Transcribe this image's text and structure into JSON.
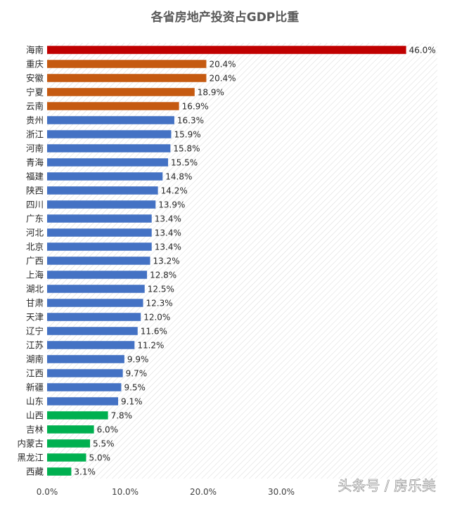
{
  "chart_data": {
    "type": "bar",
    "orientation": "horizontal",
    "title": "各省房地产投资占GDP比重",
    "xlabel": "",
    "ylabel": "",
    "xlim": [
      0,
      50
    ],
    "x_tick_labels": [
      "0.0%",
      "10.0%",
      "20.0%",
      "30.0%"
    ],
    "grid": false,
    "plot_background": "diagonal-hatch",
    "categories": [
      "海南",
      "重庆",
      "安徽",
      "宁夏",
      "云南",
      "贵州",
      "浙江",
      "河南",
      "青海",
      "福建",
      "陕西",
      "四川",
      "广东",
      "河北",
      "北京",
      "广西",
      "上海",
      "湖北",
      "甘肃",
      "天津",
      "辽宁",
      "江苏",
      "湖南",
      "江西",
      "新疆",
      "山东",
      "山西",
      "吉林",
      "内蒙古",
      "黑龙江",
      "西藏"
    ],
    "values": [
      46.0,
      20.4,
      20.4,
      18.9,
      16.9,
      16.3,
      15.9,
      15.8,
      15.5,
      14.8,
      14.2,
      13.9,
      13.4,
      13.4,
      13.4,
      13.2,
      12.8,
      12.5,
      12.3,
      12.0,
      11.6,
      11.2,
      9.9,
      9.7,
      9.5,
      9.1,
      7.8,
      6.0,
      5.5,
      5.0,
      3.1
    ],
    "value_labels": [
      "46.0%",
      "20.4%",
      "20.4%",
      "18.9%",
      "16.9%",
      "16.3%",
      "15.9%",
      "15.8%",
      "15.5%",
      "14.8%",
      "14.2%",
      "13.9%",
      "13.4%",
      "13.4%",
      "13.4%",
      "13.2%",
      "12.8%",
      "12.5%",
      "12.3%",
      "12.0%",
      "11.6%",
      "11.2%",
      "9.9%",
      "9.7%",
      "9.5%",
      "9.1%",
      "7.8%",
      "6.0%",
      "5.5%",
      "5.0%",
      "3.1%"
    ],
    "bar_colors": [
      "#c00000",
      "#c55a11",
      "#c55a11",
      "#c55a11",
      "#c55a11",
      "#4472c4",
      "#4472c4",
      "#4472c4",
      "#4472c4",
      "#4472c4",
      "#4472c4",
      "#4472c4",
      "#4472c4",
      "#4472c4",
      "#4472c4",
      "#4472c4",
      "#4472c4",
      "#4472c4",
      "#4472c4",
      "#4472c4",
      "#4472c4",
      "#4472c4",
      "#4472c4",
      "#4472c4",
      "#4472c4",
      "#4472c4",
      "#00b050",
      "#00b050",
      "#00b050",
      "#00b050",
      "#00b050"
    ]
  },
  "watermark": "头条号 / 房乐美"
}
